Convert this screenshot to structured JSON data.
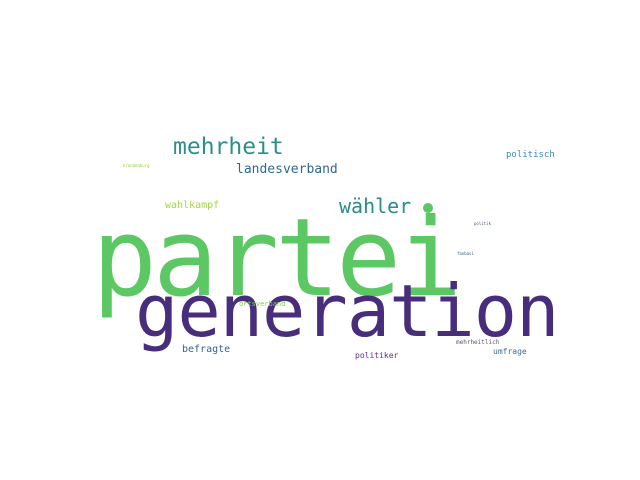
{
  "words": [
    {
      "id": "partei",
      "text": "partei",
      "color": "#5cc863"
    },
    {
      "id": "generation",
      "text": "generation",
      "color": "#472d7b"
    },
    {
      "id": "mehrheit",
      "text": "mehrheit",
      "color": "#2c8f8c"
    },
    {
      "id": "waehler",
      "text": "wähler",
      "color": "#2a8c8b"
    },
    {
      "id": "landesverband",
      "text": "landesverband",
      "color": "#31688e"
    },
    {
      "id": "wahlkampf",
      "text": "wahlkampf",
      "color": "#a0da39"
    },
    {
      "id": "politisch",
      "text": "politisch",
      "color": "#3b8bbd"
    },
    {
      "id": "befragte",
      "text": "befragte",
      "color": "#33638d"
    },
    {
      "id": "ortsverband",
      "text": "ortsverband",
      "color": "#7ad151"
    },
    {
      "id": "politiker",
      "text": "politiker",
      "color": "#5b2a7e"
    },
    {
      "id": "umfrage",
      "text": "umfrage",
      "color": "#3f6a9e"
    },
    {
      "id": "mehrheitlich",
      "text": "mehrheitlich",
      "color": "#555a7e"
    },
    {
      "id": "tiny-green",
      "text": "brandenburg",
      "color": "#9bd043"
    },
    {
      "id": "tiny-blue-1",
      "text": "politik",
      "color": "#3c528b"
    },
    {
      "id": "tiny-blue-2",
      "text": "fanbasi",
      "color": "#35608d"
    }
  ],
  "dot": {
    "color": "#5cc863"
  }
}
